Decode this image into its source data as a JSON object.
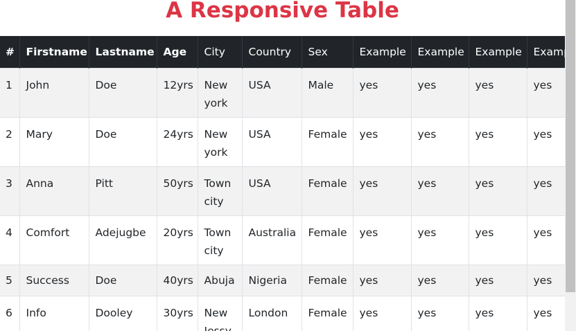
{
  "page": {
    "title": "A Responsive Table"
  },
  "colors": {
    "title": "#dc3545",
    "header_bg": "#212529",
    "header_text": "#ffffff",
    "stripe_bg": "#f2f2f2"
  },
  "table": {
    "headers": [
      "#",
      "Firstname",
      "Lastname",
      "Age",
      "City",
      "Country",
      "Sex",
      "Example",
      "Example",
      "Example",
      "Example"
    ],
    "rows": [
      [
        "1",
        "John",
        "Doe",
        "12yrs",
        "New york",
        "USA",
        "Male",
        "yes",
        "yes",
        "yes",
        "yes"
      ],
      [
        "2",
        "Mary",
        "Doe",
        "24yrs",
        "New york",
        "USA",
        "Female",
        "yes",
        "yes",
        "yes",
        "yes"
      ],
      [
        "3",
        "Anna",
        "Pitt",
        "50yrs",
        "Town city",
        "USA",
        "Female",
        "yes",
        "yes",
        "yes",
        "yes"
      ],
      [
        "4",
        "Comfort",
        "Adejugbe",
        "20yrs",
        "Town city",
        "Australia",
        "Female",
        "yes",
        "yes",
        "yes",
        "yes"
      ],
      [
        "5",
        "Success",
        "Doe",
        "40yrs",
        "Abuja",
        "Nigeria",
        "Female",
        "yes",
        "yes",
        "yes",
        "yes"
      ],
      [
        "6",
        "Info",
        "Dooley",
        "30yrs",
        "New Jessy",
        "London",
        "Female",
        "yes",
        "yes",
        "yes",
        "yes"
      ]
    ]
  }
}
